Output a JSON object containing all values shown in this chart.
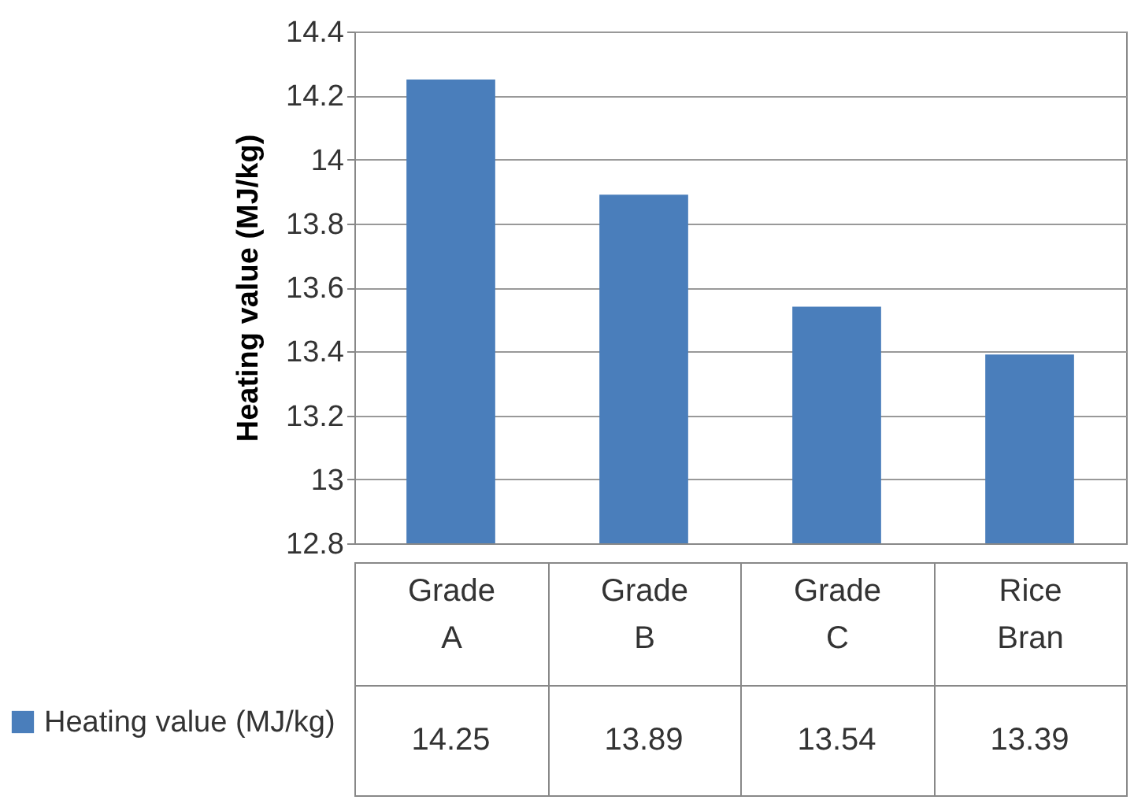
{
  "chart_data": {
    "type": "bar",
    "ylabel": "Heating value (MJ/kg)",
    "categories": [
      "Grade A",
      "Grade B",
      "Grade C",
      "Rice Bran"
    ],
    "series": [
      {
        "name": "Heating value (MJ/kg)",
        "color": "#4a7ebb",
        "values": [
          14.25,
          13.89,
          13.54,
          13.39
        ]
      }
    ],
    "ylim": [
      12.8,
      14.4
    ],
    "yticks": [
      12.8,
      13,
      13.2,
      13.4,
      13.6,
      13.8,
      14,
      14.2,
      14.4
    ],
    "grid": "y",
    "data_labels": true,
    "legend": "bottom left"
  }
}
